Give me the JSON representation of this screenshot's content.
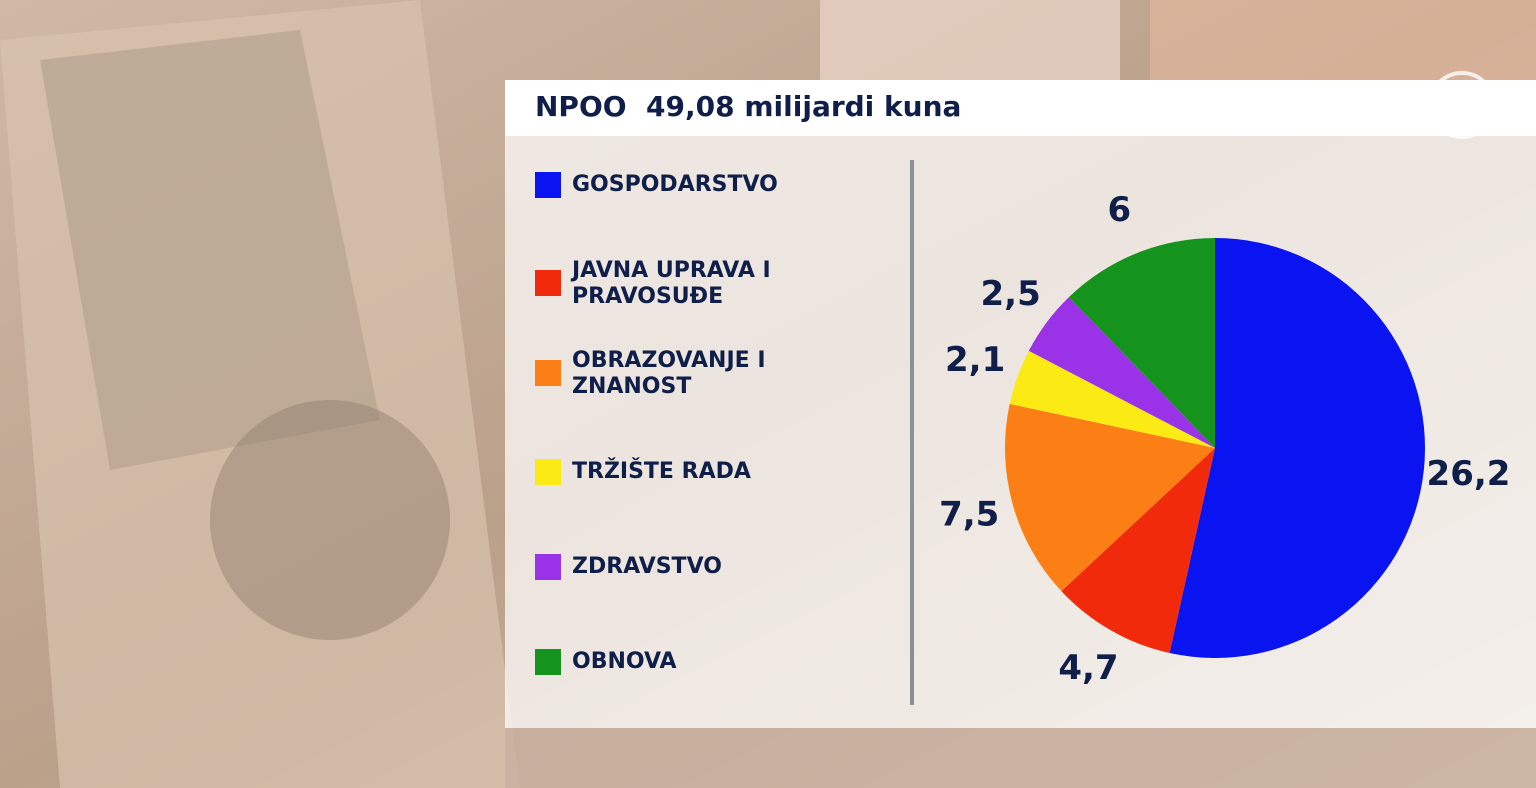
{
  "chart_data": {
    "type": "pie",
    "title": "NPOO  49,08 milijardi kuna",
    "categories": [
      "GOSPODARSTVO",
      "JAVNA UPRAVA I\nPRAVOSUĐE",
      "OBRAZOVANJE I\nZNANOST",
      "TRŽIŠTE RADA",
      "ZDRAVSTVO",
      "OBNOVA"
    ],
    "values": [
      26.2,
      4.7,
      7.5,
      2.1,
      2.5,
      6
    ],
    "value_labels": [
      "26,2",
      "4,7",
      "7,5",
      "2,1",
      "2,5",
      "6"
    ],
    "colors": [
      "#0a14f0",
      "#f02a0a",
      "#fb7f14",
      "#fcea14",
      "#9a33e8",
      "#14941c"
    ]
  }
}
